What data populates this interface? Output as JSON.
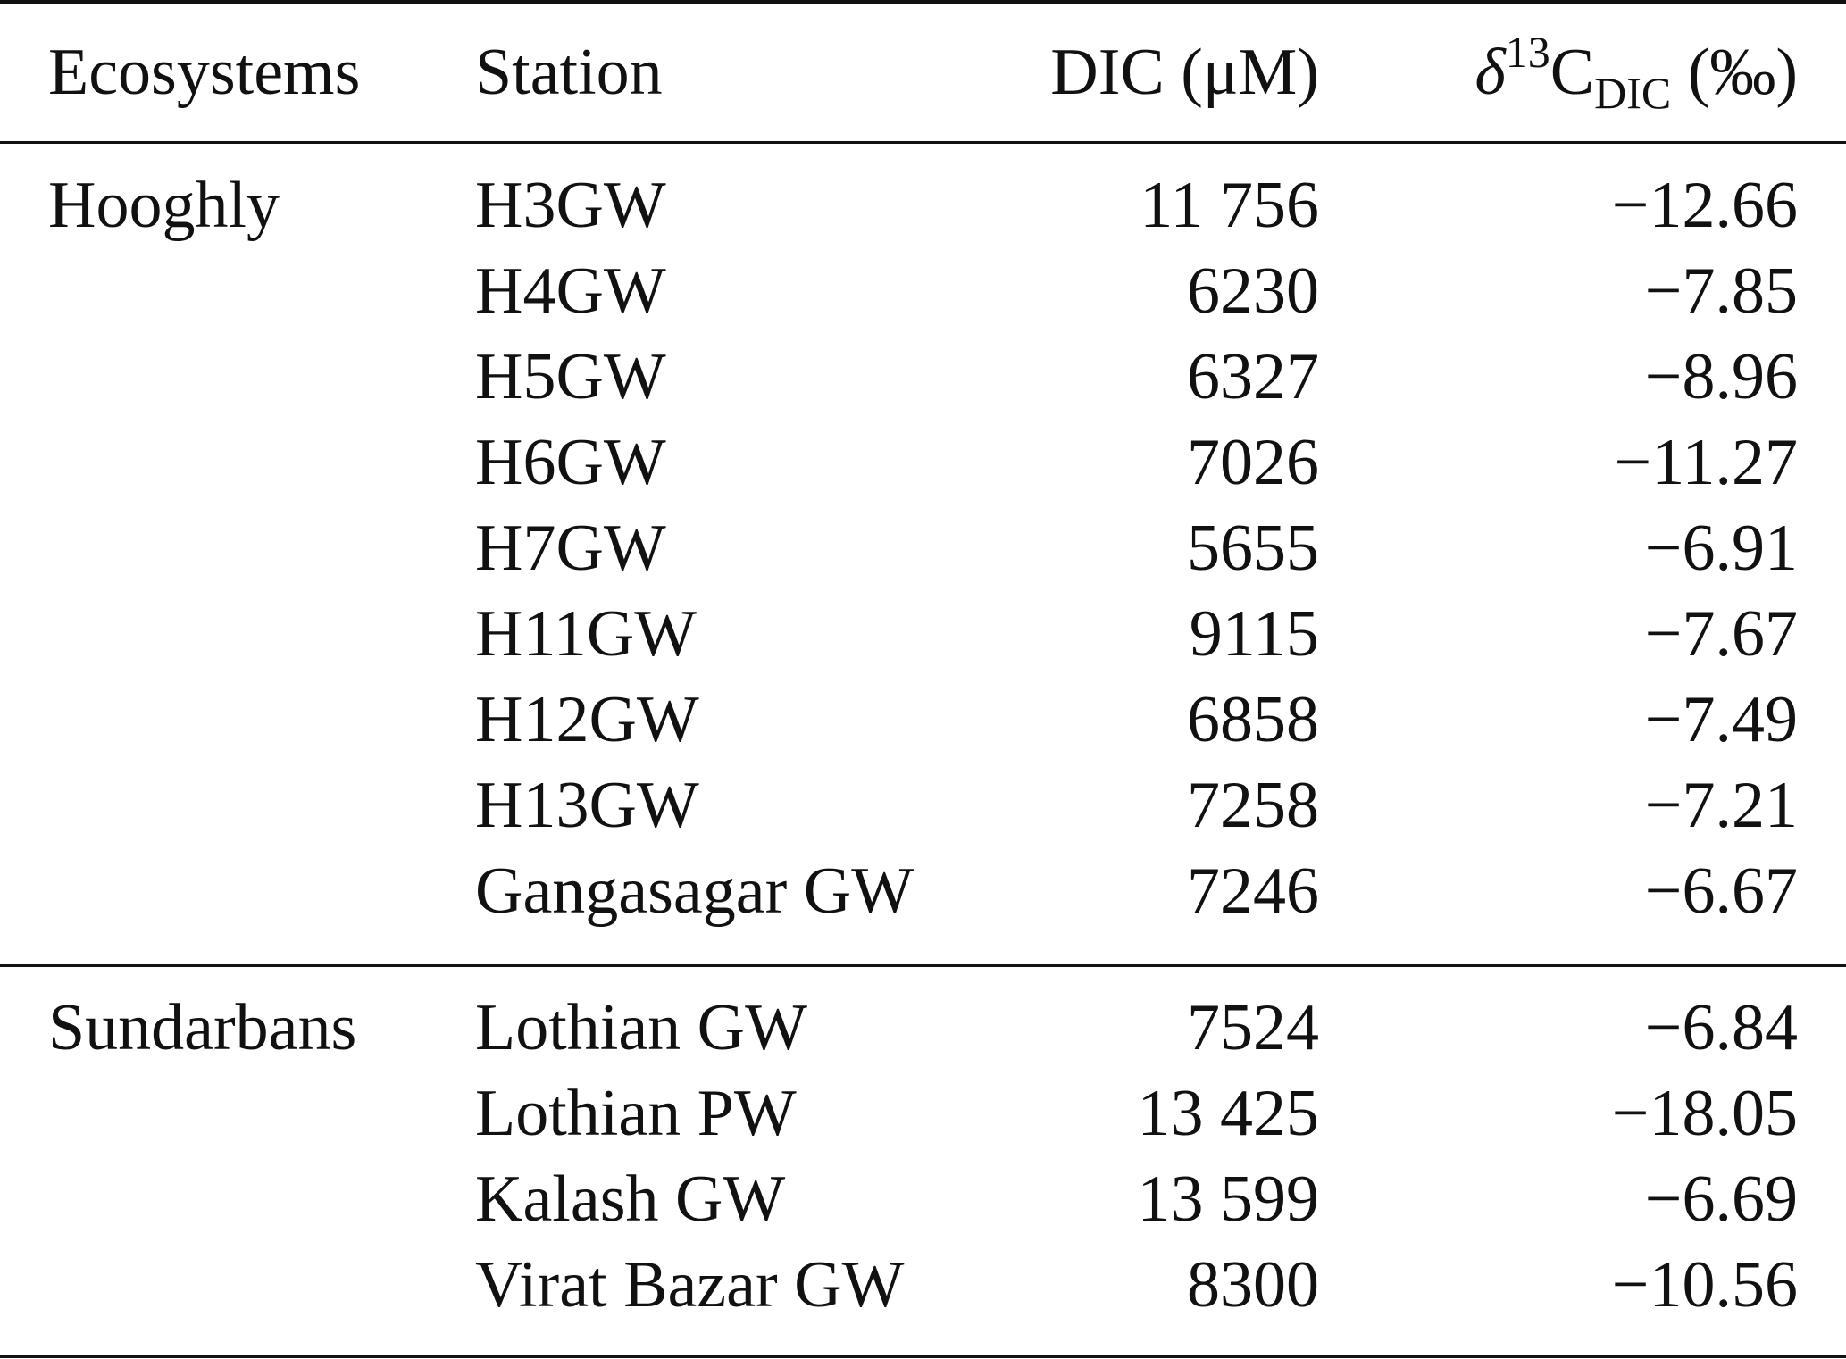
{
  "table": {
    "headers": {
      "ecosystems": "Ecosystems",
      "station": "Station",
      "dic": "DIC (μM)",
      "delta_symbol": "δ",
      "delta_sup": "13",
      "delta_c": "C",
      "delta_sub": "DIC",
      "delta_unit": " (‰)"
    },
    "groups": [
      {
        "ecosystem": "Hooghly",
        "rows": [
          {
            "station": "H3GW",
            "dic": "11 756",
            "delta": "−12.66"
          },
          {
            "station": "H4GW",
            "dic": "6230",
            "delta": "−7.85"
          },
          {
            "station": "H5GW",
            "dic": "6327",
            "delta": "−8.96"
          },
          {
            "station": "H6GW",
            "dic": "7026",
            "delta": "−11.27"
          },
          {
            "station": "H7GW",
            "dic": "5655",
            "delta": "−6.91"
          },
          {
            "station": "H11GW",
            "dic": "9115",
            "delta": "−7.67"
          },
          {
            "station": "H12GW",
            "dic": "6858",
            "delta": "−7.49"
          },
          {
            "station": "H13GW",
            "dic": "7258",
            "delta": "−7.21"
          },
          {
            "station": "Gangasagar GW",
            "dic": "7246",
            "delta": "−6.67"
          }
        ]
      },
      {
        "ecosystem": "Sundarbans",
        "rows": [
          {
            "station": "Lothian GW",
            "dic": "7524",
            "delta": "−6.84"
          },
          {
            "station": "Lothian PW",
            "dic": "13 425",
            "delta": "−18.05"
          },
          {
            "station": "Kalash GW",
            "dic": "13 599",
            "delta": "−6.69"
          },
          {
            "station": "Virat Bazar GW",
            "dic": "8300",
            "delta": "−10.56"
          }
        ]
      }
    ]
  }
}
